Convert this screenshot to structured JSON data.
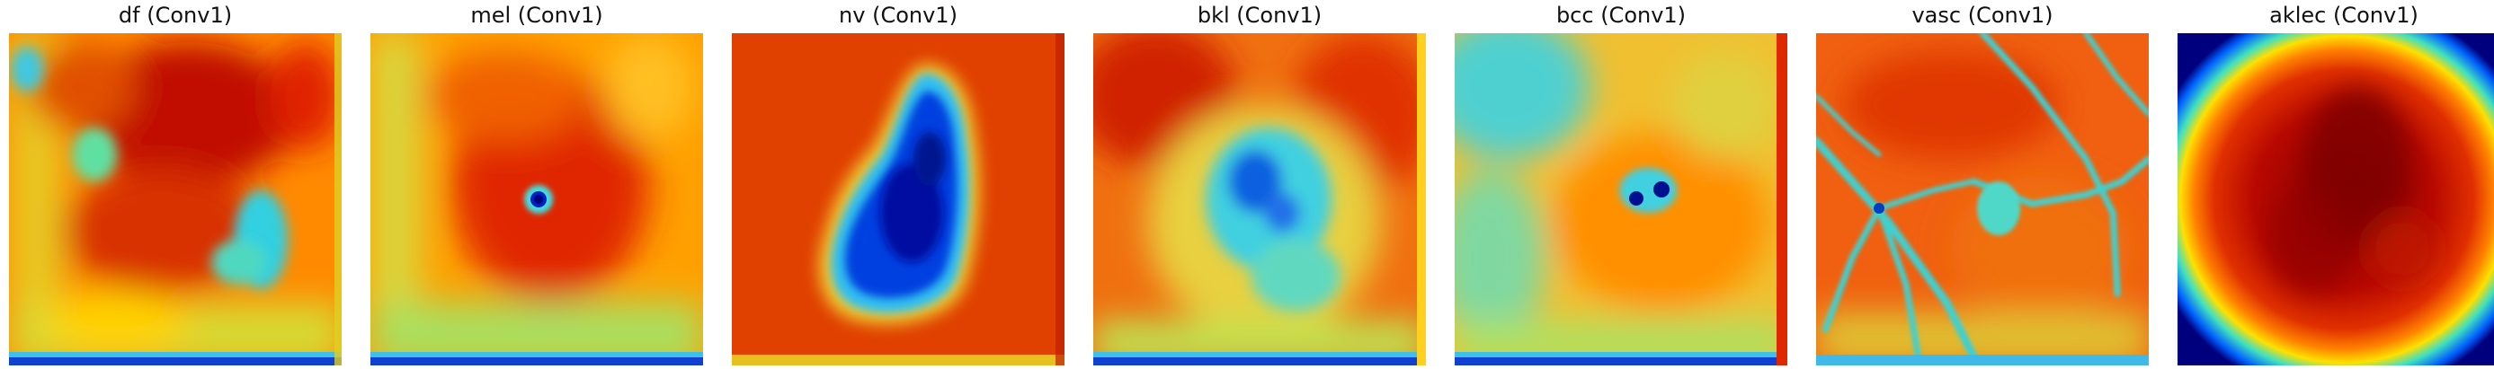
{
  "panels": [
    {
      "title": "df (Conv1)"
    },
    {
      "title": "mel (Conv1)"
    },
    {
      "title": "nv (Conv1)"
    },
    {
      "title": "bkl (Conv1)"
    },
    {
      "title": "bcc (Conv1)"
    },
    {
      "title": "vasc (Conv1)"
    },
    {
      "title": "aklec (Conv1)"
    }
  ],
  "colormap": [
    "#00007f",
    "#0040ff",
    "#00bfff",
    "#40e0c0",
    "#c0e040",
    "#ffdf00",
    "#ff8000",
    "#e02000",
    "#7f0000"
  ]
}
